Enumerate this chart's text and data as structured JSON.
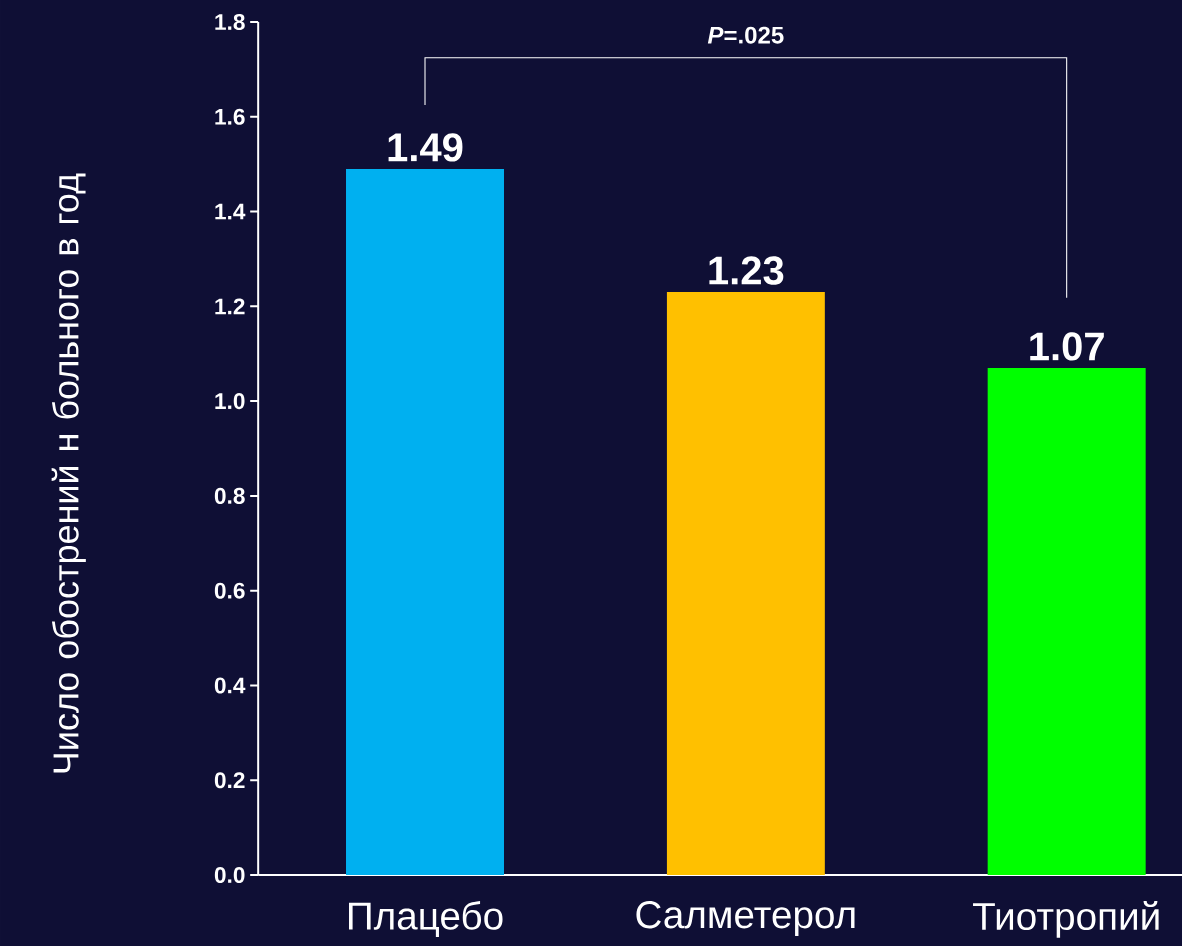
{
  "chart_data": {
    "type": "bar",
    "ylabel": "Число обострений н больного в год",
    "categories": [
      "Плацебо",
      "Салметерол",
      "Тиотропий"
    ],
    "values": [
      1.49,
      1.23,
      1.07
    ],
    "colors": [
      "#00b0f0",
      "#ffc000",
      "#00ff00"
    ],
    "data_labels": true,
    "ylim": [
      0,
      1.8
    ],
    "yticks": [
      {
        "value": 0,
        "label": "0.0"
      },
      0.2,
      0.4,
      0.6,
      0.8,
      {
        "value": 1,
        "label": "1.0"
      },
      1.2,
      1.4,
      1.6,
      1.8
    ],
    "annotations": [
      "*P*=.025"
    ],
    "grid": false
  }
}
